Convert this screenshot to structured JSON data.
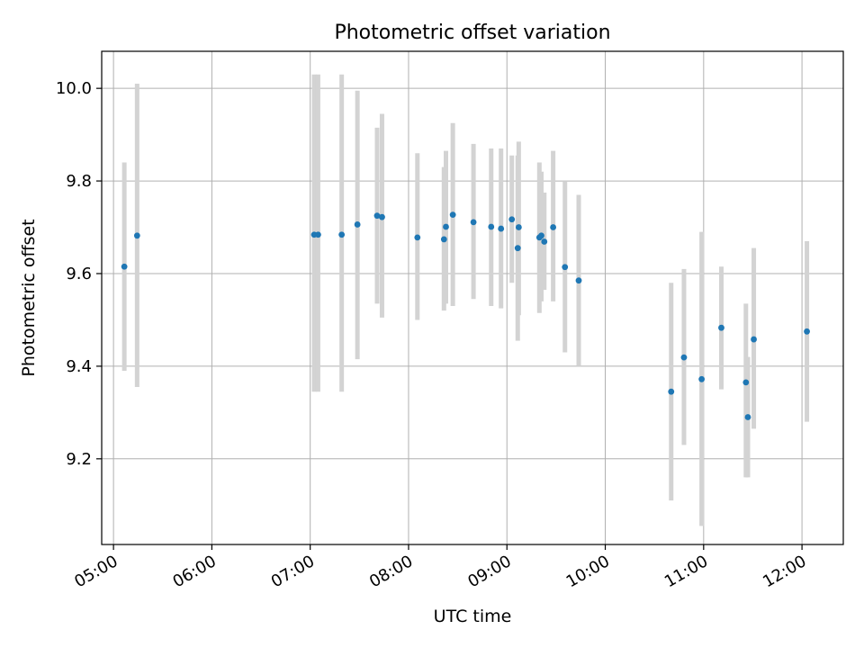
{
  "chart_data": {
    "type": "scatter",
    "title": "Photometric offset variation",
    "xlabel": "UTC time",
    "ylabel": "Photometric offset",
    "x_unit": "hours UTC",
    "xlim": [
      4.88,
      12.42
    ],
    "ylim": [
      9.015,
      10.08
    ],
    "grid": true,
    "x_ticks": [
      {
        "value": 5,
        "label": "05:00"
      },
      {
        "value": 6,
        "label": "06:00"
      },
      {
        "value": 7,
        "label": "07:00"
      },
      {
        "value": 8,
        "label": "08:00"
      },
      {
        "value": 9,
        "label": "09:00"
      },
      {
        "value": 10,
        "label": "10:00"
      },
      {
        "value": 11,
        "label": "11:00"
      },
      {
        "value": 12,
        "label": "12:00"
      }
    ],
    "y_ticks": [
      {
        "value": 9.2,
        "label": "9.2"
      },
      {
        "value": 9.4,
        "label": "9.4"
      },
      {
        "value": 9.6,
        "label": "9.6"
      },
      {
        "value": 9.8,
        "label": "9.8"
      },
      {
        "value": 10.0,
        "label": "10.0"
      }
    ],
    "point_color": "#1f77b4",
    "errorbar_color": "#d3d3d3",
    "points": [
      {
        "x": 5.11,
        "y": 9.615,
        "lo": 9.39,
        "hi": 9.84
      },
      {
        "x": 5.24,
        "y": 9.682,
        "lo": 9.355,
        "hi": 10.01
      },
      {
        "x": 7.04,
        "y": 9.684,
        "lo": 9.345,
        "hi": 10.03
      },
      {
        "x": 7.08,
        "y": 9.684,
        "lo": 9.345,
        "hi": 10.03
      },
      {
        "x": 7.32,
        "y": 9.684,
        "lo": 9.345,
        "hi": 10.03
      },
      {
        "x": 7.48,
        "y": 9.706,
        "lo": 9.415,
        "hi": 9.995
      },
      {
        "x": 7.68,
        "y": 9.725,
        "lo": 9.535,
        "hi": 9.915
      },
      {
        "x": 7.73,
        "y": 9.722,
        "lo": 9.505,
        "hi": 9.945
      },
      {
        "x": 8.09,
        "y": 9.678,
        "lo": 9.5,
        "hi": 9.86
      },
      {
        "x": 8.36,
        "y": 9.674,
        "lo": 9.52,
        "hi": 9.83
      },
      {
        "x": 8.38,
        "y": 9.701,
        "lo": 9.535,
        "hi": 9.865
      },
      {
        "x": 8.45,
        "y": 9.727,
        "lo": 9.53,
        "hi": 9.925
      },
      {
        "x": 8.66,
        "y": 9.711,
        "lo": 9.545,
        "hi": 9.88
      },
      {
        "x": 8.84,
        "y": 9.701,
        "lo": 9.53,
        "hi": 9.87
      },
      {
        "x": 8.94,
        "y": 9.697,
        "lo": 9.525,
        "hi": 9.87
      },
      {
        "x": 9.05,
        "y": 9.717,
        "lo": 9.58,
        "hi": 9.855
      },
      {
        "x": 9.11,
        "y": 9.655,
        "lo": 9.455,
        "hi": 9.855
      },
      {
        "x": 9.12,
        "y": 9.7,
        "lo": 9.51,
        "hi": 9.885
      },
      {
        "x": 9.33,
        "y": 9.678,
        "lo": 9.515,
        "hi": 9.84
      },
      {
        "x": 9.35,
        "y": 9.682,
        "lo": 9.54,
        "hi": 9.82
      },
      {
        "x": 9.38,
        "y": 9.669,
        "lo": 9.565,
        "hi": 9.775
      },
      {
        "x": 9.47,
        "y": 9.7,
        "lo": 9.54,
        "hi": 9.865
      },
      {
        "x": 9.59,
        "y": 9.614,
        "lo": 9.43,
        "hi": 9.8
      },
      {
        "x": 9.73,
        "y": 9.585,
        "lo": 9.4,
        "hi": 9.77
      },
      {
        "x": 10.67,
        "y": 9.345,
        "lo": 9.11,
        "hi": 9.58
      },
      {
        "x": 10.8,
        "y": 9.419,
        "lo": 9.23,
        "hi": 9.61
      },
      {
        "x": 10.98,
        "y": 9.372,
        "lo": 9.055,
        "hi": 9.69
      },
      {
        "x": 11.18,
        "y": 9.483,
        "lo": 9.35,
        "hi": 9.615
      },
      {
        "x": 11.43,
        "y": 9.365,
        "lo": 9.16,
        "hi": 9.535
      },
      {
        "x": 11.45,
        "y": 9.29,
        "lo": 9.16,
        "hi": 9.42
      },
      {
        "x": 11.51,
        "y": 9.458,
        "lo": 9.265,
        "hi": 9.655
      },
      {
        "x": 12.05,
        "y": 9.475,
        "lo": 9.28,
        "hi": 9.67
      }
    ]
  }
}
